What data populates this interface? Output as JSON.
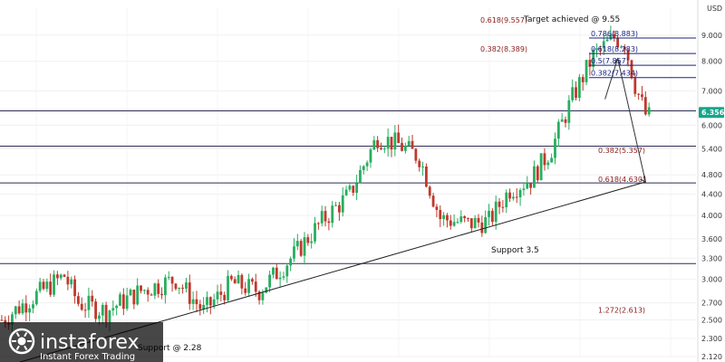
{
  "chart_data": {
    "type": "candlestick",
    "y_axis_unit": "USD",
    "yticks": [
      "9.000",
      "8.000",
      "7.000",
      "6.000",
      "5.400",
      "4.800",
      "4.400",
      "4.000",
      "3.600",
      "3.300",
      "3.000",
      "2.700",
      "2.500",
      "2.300",
      "2.120"
    ],
    "ylim": [
      2.12,
      10.2
    ],
    "y_scale": "log",
    "current_price": "6.356",
    "current_price_color": "#17a589",
    "up_color": "#27ae60",
    "down_color": "#c0392b",
    "fib_label_color": "#8b1a1a",
    "fib_label_blue": "#1a237e",
    "horizontal_levels": [
      6.4,
      5.46,
      4.63,
      3.22
    ],
    "trendline": {
      "from": {
        "bar": 0,
        "value": 2.02
      },
      "to": {
        "bar": 185,
        "value": 4.65
      }
    },
    "projection_arrow": [
      {
        "bar": 177,
        "value": 8.1
      },
      {
        "bar": 185,
        "value": 4.65
      }
    ],
    "labels": {
      "target": "Target achieved @ 9.55",
      "support_35": "Support 3.5",
      "support_228": "Support @ 2.28",
      "fib_0618_upper": "0.618(9.557)",
      "fib_0382_upper": "0.382(8.389)",
      "fib_0786": "0.786(8.883)",
      "fib_0618_mid": "0.618(8.283)",
      "fib_05": "0.5(7.857)",
      "fib_0382_mid": "0.382(7.434)",
      "fib_0382_low": "0.382(5.357)",
      "fib_0618_low": "0.618(4.630)",
      "fib_1272": "1.272(2.613)"
    },
    "logo": {
      "name": "instaforex",
      "tagline": "Instant Forex Trading"
    }
  }
}
